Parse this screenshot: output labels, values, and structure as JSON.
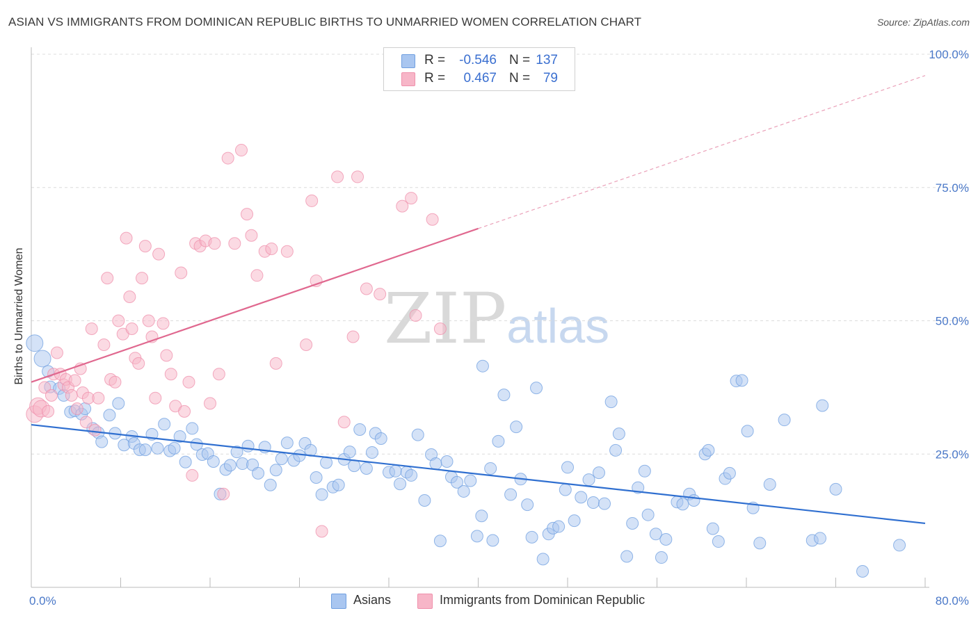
{
  "header": {
    "title": "ASIAN VS IMMIGRANTS FROM DOMINICAN REPUBLIC BIRTHS TO UNMARRIED WOMEN CORRELATION CHART",
    "source": "Source: ZipAtlas.com"
  },
  "watermark": {
    "zip": "ZIP",
    "atlas": "atlas"
  },
  "legend": {
    "rows": [
      {
        "r_label": "R =",
        "r_value": "-0.546",
        "n_label": "N =",
        "n_value": "137",
        "color": "#a9c6f0"
      },
      {
        "r_label": "R =",
        "r_value": "0.467",
        "n_label": "N =",
        "n_value": "79",
        "color": "#f7b6c8"
      }
    ]
  },
  "bottom_legend": [
    {
      "label": "Asians",
      "color": "#a9c6f0"
    },
    {
      "label": "Immigrants from Dominican Republic",
      "color": "#f7b6c8"
    }
  ],
  "chart_data": {
    "type": "scatter",
    "title": "ASIAN VS IMMIGRANTS FROM DOMINICAN REPUBLIC BIRTHS TO UNMARRIED WOMEN CORRELATION CHART",
    "ylabel": "Births to Unmarried Women",
    "xlabel": "",
    "xlim": [
      0,
      80
    ],
    "ylim": [
      0,
      100
    ],
    "x_tick_labels": [
      "0.0%",
      "80.0%"
    ],
    "y_tick_labels": [
      "25.0%",
      "50.0%",
      "75.0%",
      "100.0%"
    ],
    "y_ticks": [
      25,
      50,
      75,
      100
    ],
    "grid": "horizontal dashed",
    "legend_position": "top-center",
    "series": [
      {
        "name": "Asians",
        "color": "#6f9fe0",
        "fill": "#a9c6f0",
        "trend": {
          "x": [
            0,
            80
          ],
          "y": [
            30.5,
            12.0
          ]
        },
        "points": [
          [
            0.3,
            45.8
          ],
          [
            1.0,
            42.9
          ],
          [
            1.5,
            40.5
          ],
          [
            1.7,
            37.6
          ],
          [
            2.5,
            37.3
          ],
          [
            2.9,
            36.0
          ],
          [
            3.5,
            32.9
          ],
          [
            3.9,
            33.1
          ],
          [
            4.5,
            32.5
          ],
          [
            4.8,
            33.5
          ],
          [
            5.5,
            29.8
          ],
          [
            6.0,
            29.0
          ],
          [
            6.3,
            27.3
          ],
          [
            7.0,
            32.3
          ],
          [
            7.5,
            28.9
          ],
          [
            7.8,
            34.5
          ],
          [
            8.3,
            26.7
          ],
          [
            9.0,
            28.3
          ],
          [
            9.2,
            27.0
          ],
          [
            9.7,
            25.8
          ],
          [
            10.2,
            25.8
          ],
          [
            10.8,
            28.7
          ],
          [
            11.3,
            26.1
          ],
          [
            11.9,
            30.6
          ],
          [
            12.4,
            25.6
          ],
          [
            12.8,
            26.1
          ],
          [
            13.3,
            28.3
          ],
          [
            13.8,
            23.5
          ],
          [
            14.4,
            29.8
          ],
          [
            14.8,
            26.8
          ],
          [
            15.3,
            24.9
          ],
          [
            15.8,
            25.1
          ],
          [
            16.3,
            23.6
          ],
          [
            16.9,
            17.5
          ],
          [
            17.4,
            22.1
          ],
          [
            17.8,
            22.9
          ],
          [
            18.4,
            25.4
          ],
          [
            18.9,
            23.2
          ],
          [
            19.4,
            26.5
          ],
          [
            19.8,
            23.0
          ],
          [
            20.3,
            21.4
          ],
          [
            20.9,
            26.3
          ],
          [
            21.4,
            19.2
          ],
          [
            21.9,
            22.0
          ],
          [
            22.4,
            24.1
          ],
          [
            22.9,
            27.1
          ],
          [
            23.5,
            23.8
          ],
          [
            24.0,
            24.7
          ],
          [
            24.5,
            27.0
          ],
          [
            25.0,
            25.7
          ],
          [
            25.5,
            20.6
          ],
          [
            26.0,
            17.4
          ],
          [
            26.4,
            23.4
          ],
          [
            27.0,
            18.8
          ],
          [
            27.5,
            19.2
          ],
          [
            28.0,
            24.0
          ],
          [
            28.5,
            25.4
          ],
          [
            28.9,
            22.8
          ],
          [
            29.4,
            29.6
          ],
          [
            30.0,
            22.3
          ],
          [
            30.5,
            25.3
          ],
          [
            30.8,
            28.9
          ],
          [
            31.3,
            27.9
          ],
          [
            32.0,
            21.6
          ],
          [
            32.6,
            21.8
          ],
          [
            33.0,
            19.4
          ],
          [
            33.6,
            21.6
          ],
          [
            34.0,
            21.0
          ],
          [
            34.6,
            28.6
          ],
          [
            35.2,
            16.3
          ],
          [
            35.8,
            24.9
          ],
          [
            36.2,
            23.2
          ],
          [
            36.6,
            8.7
          ],
          [
            37.2,
            23.6
          ],
          [
            37.6,
            20.7
          ],
          [
            38.1,
            19.7
          ],
          [
            38.7,
            18.0
          ],
          [
            39.3,
            20.0
          ],
          [
            39.9,
            9.6
          ],
          [
            40.3,
            13.4
          ],
          [
            40.4,
            41.5
          ],
          [
            41.1,
            22.3
          ],
          [
            41.3,
            8.8
          ],
          [
            41.8,
            27.4
          ],
          [
            42.3,
            36.1
          ],
          [
            42.9,
            17.4
          ],
          [
            43.4,
            30.1
          ],
          [
            43.8,
            20.3
          ],
          [
            44.4,
            15.5
          ],
          [
            44.8,
            9.4
          ],
          [
            45.2,
            37.4
          ],
          [
            45.8,
            5.3
          ],
          [
            46.3,
            10.0
          ],
          [
            46.7,
            11.1
          ],
          [
            47.2,
            11.4
          ],
          [
            47.8,
            18.3
          ],
          [
            48.0,
            22.5
          ],
          [
            48.6,
            12.5
          ],
          [
            49.2,
            16.9
          ],
          [
            49.9,
            20.2
          ],
          [
            50.3,
            15.9
          ],
          [
            50.8,
            21.5
          ],
          [
            51.3,
            15.7
          ],
          [
            51.9,
            34.8
          ],
          [
            52.3,
            25.7
          ],
          [
            52.6,
            28.8
          ],
          [
            53.3,
            5.8
          ],
          [
            53.8,
            12.0
          ],
          [
            54.3,
            18.7
          ],
          [
            54.9,
            21.8
          ],
          [
            55.2,
            13.6
          ],
          [
            55.9,
            10.0
          ],
          [
            56.4,
            5.6
          ],
          [
            56.8,
            9.0
          ],
          [
            57.8,
            16.0
          ],
          [
            58.3,
            15.6
          ],
          [
            58.9,
            17.5
          ],
          [
            59.3,
            16.3
          ],
          [
            60.3,
            25.0
          ],
          [
            60.6,
            25.7
          ],
          [
            61.0,
            11.0
          ],
          [
            61.5,
            8.6
          ],
          [
            62.1,
            20.4
          ],
          [
            62.5,
            21.4
          ],
          [
            63.1,
            38.7
          ],
          [
            63.6,
            38.8
          ],
          [
            64.1,
            29.3
          ],
          [
            64.6,
            14.9
          ],
          [
            65.2,
            8.3
          ],
          [
            66.1,
            19.3
          ],
          [
            67.4,
            31.4
          ],
          [
            69.9,
            8.8
          ],
          [
            70.6,
            9.2
          ],
          [
            70.8,
            34.1
          ],
          [
            72.0,
            18.4
          ],
          [
            74.4,
            3.0
          ],
          [
            77.7,
            7.9
          ]
        ]
      },
      {
        "name": "Immigrants from Dominican Republic",
        "color": "#ef8fab",
        "fill": "#f7b6c8",
        "trend": {
          "x": [
            0,
            40
          ],
          "y": [
            38.5,
            67.3
          ]
        },
        "trend_dashed": {
          "x": [
            40,
            80
          ],
          "y": [
            67.3,
            96.0
          ]
        },
        "points": [
          [
            0.3,
            32.5
          ],
          [
            0.6,
            34.0
          ],
          [
            0.9,
            33.5
          ],
          [
            1.2,
            37.5
          ],
          [
            1.5,
            33.0
          ],
          [
            1.8,
            36.0
          ],
          [
            2.0,
            40.0
          ],
          [
            2.3,
            44.0
          ],
          [
            2.6,
            40.0
          ],
          [
            2.9,
            38.0
          ],
          [
            3.1,
            39.0
          ],
          [
            3.3,
            37.5
          ],
          [
            3.6,
            36.0
          ],
          [
            3.9,
            38.8
          ],
          [
            4.1,
            33.5
          ],
          [
            4.4,
            41.0
          ],
          [
            4.6,
            36.5
          ],
          [
            4.9,
            31.0
          ],
          [
            5.1,
            35.5
          ],
          [
            5.4,
            48.5
          ],
          [
            5.7,
            29.5
          ],
          [
            6.0,
            35.5
          ],
          [
            6.5,
            45.5
          ],
          [
            6.8,
            58.0
          ],
          [
            7.1,
            39.0
          ],
          [
            7.5,
            38.5
          ],
          [
            7.8,
            50.0
          ],
          [
            8.2,
            47.5
          ],
          [
            8.5,
            65.5
          ],
          [
            8.8,
            54.5
          ],
          [
            9.0,
            48.5
          ],
          [
            9.3,
            43.0
          ],
          [
            9.6,
            42.0
          ],
          [
            9.9,
            58.0
          ],
          [
            10.2,
            64.0
          ],
          [
            10.5,
            50.0
          ],
          [
            10.8,
            47.0
          ],
          [
            11.1,
            35.5
          ],
          [
            11.4,
            62.5
          ],
          [
            11.8,
            49.5
          ],
          [
            12.1,
            43.5
          ],
          [
            12.5,
            40.0
          ],
          [
            12.9,
            34.0
          ],
          [
            13.4,
            59.0
          ],
          [
            13.7,
            33.0
          ],
          [
            14.1,
            38.5
          ],
          [
            14.4,
            21.0
          ],
          [
            14.7,
            64.5
          ],
          [
            15.1,
            64.0
          ],
          [
            15.6,
            65.0
          ],
          [
            16.0,
            34.5
          ],
          [
            16.4,
            64.5
          ],
          [
            16.8,
            40.0
          ],
          [
            17.2,
            17.5
          ],
          [
            17.6,
            80.5
          ],
          [
            18.2,
            64.5
          ],
          [
            18.8,
            82.0
          ],
          [
            19.3,
            70.0
          ],
          [
            19.7,
            66.0
          ],
          [
            20.2,
            58.5
          ],
          [
            20.9,
            63.0
          ],
          [
            21.5,
            63.5
          ],
          [
            21.9,
            42.0
          ],
          [
            22.9,
            63.0
          ],
          [
            24.6,
            45.5
          ],
          [
            25.1,
            72.5
          ],
          [
            25.5,
            57.5
          ],
          [
            26.0,
            10.5
          ],
          [
            27.4,
            77.0
          ],
          [
            28.0,
            31.0
          ],
          [
            28.8,
            47.0
          ],
          [
            29.2,
            77.0
          ],
          [
            30.0,
            56.0
          ],
          [
            31.2,
            55.0
          ],
          [
            33.2,
            71.5
          ],
          [
            34.0,
            73.0
          ],
          [
            34.4,
            51.0
          ],
          [
            35.9,
            69.0
          ],
          [
            36.6,
            48.5
          ]
        ]
      }
    ]
  }
}
